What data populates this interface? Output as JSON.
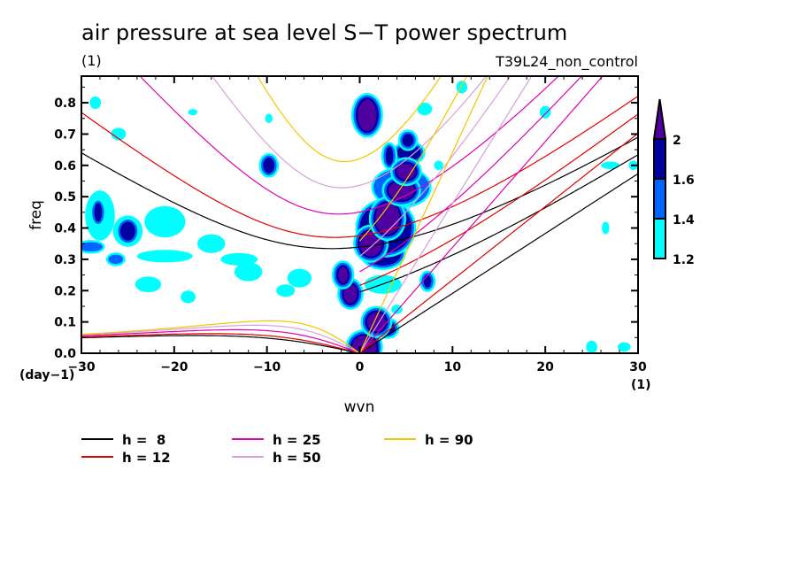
{
  "chart_data": {
    "type": "heatmap",
    "title": "air pressure at sea level S−T power spectrum",
    "subtitle_left": "(1)",
    "subtitle_right": "T39L24_non_control",
    "xlabel": "wvn",
    "ylabel": "freq",
    "x_unit": "(1)",
    "y_unit": "(day−1)",
    "xlim": [
      -30,
      30
    ],
    "ylim": [
      0,
      0.885
    ],
    "x_ticks": [
      -30,
      -20,
      -10,
      0,
      10,
      20,
      30
    ],
    "x_tick_labels": [
      "−30",
      "−20",
      "−10",
      "0",
      "10",
      "20",
      "30"
    ],
    "y_ticks": [
      0.0,
      0.1,
      0.2,
      0.3,
      0.4,
      0.5,
      0.6,
      0.7,
      0.8
    ],
    "y_tick_labels": [
      "0.0",
      "0.1",
      "0.2",
      "0.3",
      "0.4",
      "0.5",
      "0.6",
      "0.7",
      "0.8"
    ],
    "colorbar": {
      "levels": [
        1.2,
        1.4,
        1.6,
        2
      ],
      "labels": [
        "1.2",
        "1.4",
        "1.6",
        "2"
      ],
      "colors": [
        "#00ffff",
        "#0064ff",
        "#0000a0",
        "#5000a0"
      ],
      "extend": "max"
    },
    "contour_regions": [
      {
        "wvn": 0.8,
        "freq": 0.76,
        "rw": 1.0,
        "rf": 0.05,
        "level": 3
      },
      {
        "wvn": 0.5,
        "freq": 0.02,
        "rw": 1.3,
        "rf": 0.035,
        "level": 3
      },
      {
        "wvn": 1.8,
        "freq": 0.1,
        "rw": 1.0,
        "rf": 0.03,
        "level": 3
      },
      {
        "wvn": 3.0,
        "freq": 0.08,
        "rw": 0.8,
        "rf": 0.02,
        "level": 2
      },
      {
        "wvn": -1.0,
        "freq": 0.19,
        "rw": 0.7,
        "rf": 0.03,
        "level": 3
      },
      {
        "wvn": -1.8,
        "freq": 0.25,
        "rw": 0.5,
        "rf": 0.025,
        "level": 3
      },
      {
        "wvn": 1.2,
        "freq": 0.35,
        "rw": 1.2,
        "rf": 0.04,
        "level": 3
      },
      {
        "wvn": 2.5,
        "freq": 0.32,
        "rw": 2.0,
        "rf": 0.04,
        "level": 2
      },
      {
        "wvn": 3.0,
        "freq": 0.43,
        "rw": 1.3,
        "rf": 0.05,
        "level": 3
      },
      {
        "wvn": 2.8,
        "freq": 0.4,
        "rw": 2.8,
        "rf": 0.08,
        "level": 2
      },
      {
        "wvn": 4.5,
        "freq": 0.52,
        "rw": 1.4,
        "rf": 0.03,
        "level": 3
      },
      {
        "wvn": 4.5,
        "freq": 0.53,
        "rw": 3.0,
        "rf": 0.06,
        "level": 1
      },
      {
        "wvn": 5.0,
        "freq": 0.58,
        "rw": 1.0,
        "rf": 0.025,
        "level": 3
      },
      {
        "wvn": 5.3,
        "freq": 0.64,
        "rw": 1.3,
        "rf": 0.025,
        "level": 2
      },
      {
        "wvn": 5.2,
        "freq": 0.68,
        "rw": 0.6,
        "rf": 0.02,
        "level": 2
      },
      {
        "wvn": 3.2,
        "freq": 0.63,
        "rw": 0.4,
        "rf": 0.03,
        "level": 2
      },
      {
        "wvn": 2.5,
        "freq": 0.22,
        "rw": 2.0,
        "rf": 0.03,
        "level": 0
      },
      {
        "wvn": 7.3,
        "freq": 0.23,
        "rw": 0.4,
        "rf": 0.02,
        "level": 2
      },
      {
        "wvn": 4.0,
        "freq": 0.14,
        "rw": 0.6,
        "rf": 0.015,
        "level": 0
      },
      {
        "wvn": 7.0,
        "freq": 0.78,
        "rw": 0.8,
        "rf": 0.02,
        "level": 0
      },
      {
        "wvn": 8.5,
        "freq": 0.6,
        "rw": 0.5,
        "rf": 0.015,
        "level": 0
      },
      {
        "wvn": -9.8,
        "freq": 0.6,
        "rw": 0.6,
        "rf": 0.025,
        "level": 2
      },
      {
        "wvn": -9.8,
        "freq": 0.75,
        "rw": 0.4,
        "rf": 0.015,
        "level": 0
      },
      {
        "wvn": -25.0,
        "freq": 0.39,
        "rw": 0.8,
        "rf": 0.03,
        "level": 2
      },
      {
        "wvn": -25.0,
        "freq": 0.39,
        "rw": 1.6,
        "rf": 0.05,
        "level": 0
      },
      {
        "wvn": -28.0,
        "freq": 0.44,
        "rw": 1.6,
        "rf": 0.08,
        "level": 0
      },
      {
        "wvn": -28.2,
        "freq": 0.45,
        "rw": 0.4,
        "rf": 0.03,
        "level": 2
      },
      {
        "wvn": -21.0,
        "freq": 0.42,
        "rw": 2.2,
        "rf": 0.05,
        "level": 0
      },
      {
        "wvn": -29.0,
        "freq": 0.34,
        "rw": 1.3,
        "rf": 0.015,
        "level": 1
      },
      {
        "wvn": -26.3,
        "freq": 0.3,
        "rw": 0.8,
        "rf": 0.015,
        "level": 1
      },
      {
        "wvn": -21.0,
        "freq": 0.31,
        "rw": 3.0,
        "rf": 0.02,
        "level": 0
      },
      {
        "wvn": -13.0,
        "freq": 0.3,
        "rw": 2.0,
        "rf": 0.02,
        "level": 0
      },
      {
        "wvn": -22.8,
        "freq": 0.22,
        "rw": 1.4,
        "rf": 0.025,
        "level": 0
      },
      {
        "wvn": -18.5,
        "freq": 0.18,
        "rw": 0.8,
        "rf": 0.02,
        "level": 0
      },
      {
        "wvn": -16.0,
        "freq": 0.35,
        "rw": 1.5,
        "rf": 0.03,
        "level": 0
      },
      {
        "wvn": -12.0,
        "freq": 0.26,
        "rw": 1.5,
        "rf": 0.03,
        "level": 0
      },
      {
        "wvn": -6.5,
        "freq": 0.24,
        "rw": 1.3,
        "rf": 0.03,
        "level": 0
      },
      {
        "wvn": -8.0,
        "freq": 0.2,
        "rw": 1.0,
        "rf": 0.02,
        "level": 0
      },
      {
        "wvn": -26.0,
        "freq": 0.7,
        "rw": 0.8,
        "rf": 0.02,
        "level": 0
      },
      {
        "wvn": -28.5,
        "freq": 0.8,
        "rw": 0.6,
        "rf": 0.02,
        "level": 0
      },
      {
        "wvn": -18.0,
        "freq": 0.77,
        "rw": 0.5,
        "rf": 0.01,
        "level": 0
      },
      {
        "wvn": 25.0,
        "freq": 0.02,
        "rw": 0.6,
        "rf": 0.02,
        "level": 0
      },
      {
        "wvn": 28.5,
        "freq": 0.02,
        "rw": 0.7,
        "rf": 0.015,
        "level": 0
      },
      {
        "wvn": 26.5,
        "freq": 0.4,
        "rw": 0.4,
        "rf": 0.02,
        "level": 0
      },
      {
        "wvn": 27.0,
        "freq": 0.6,
        "rw": 1.0,
        "rf": 0.012,
        "level": 0
      },
      {
        "wvn": 29.5,
        "freq": 0.6,
        "rw": 0.5,
        "rf": 0.015,
        "level": 0
      },
      {
        "wvn": 20.0,
        "freq": 0.77,
        "rw": 0.6,
        "rf": 0.02,
        "level": 0
      },
      {
        "wvn": 11.0,
        "freq": 0.85,
        "rw": 0.6,
        "rf": 0.02,
        "level": 0
      }
    ],
    "series": [
      {
        "name": "h =  8",
        "equivalent_depth_m": 8,
        "color": "#000000"
      },
      {
        "name": "h = 12",
        "equivalent_depth_m": 12,
        "color": "#e00000"
      },
      {
        "name": "h = 25",
        "equivalent_depth_m": 25,
        "color": "#e000b0"
      },
      {
        "name": "h = 50",
        "equivalent_depth_m": 50,
        "color": "#d8a0d8"
      },
      {
        "name": "h = 90",
        "equivalent_depth_m": 90,
        "color": "#f0c800"
      }
    ],
    "curve_families": [
      "kelvin",
      "mrg",
      "n1_gravity",
      "n1_rossby"
    ],
    "legend": [
      {
        "label": "h =  8",
        "color": "#000000"
      },
      {
        "label": "h = 12",
        "color": "#e00000"
      },
      {
        "label": "h = 25",
        "color": "#e000b0"
      },
      {
        "label": "h = 50",
        "color": "#d8a0d8"
      },
      {
        "label": "h = 90",
        "color": "#f0c800"
      }
    ],
    "legend_placement": "bottom",
    "grid": false
  }
}
